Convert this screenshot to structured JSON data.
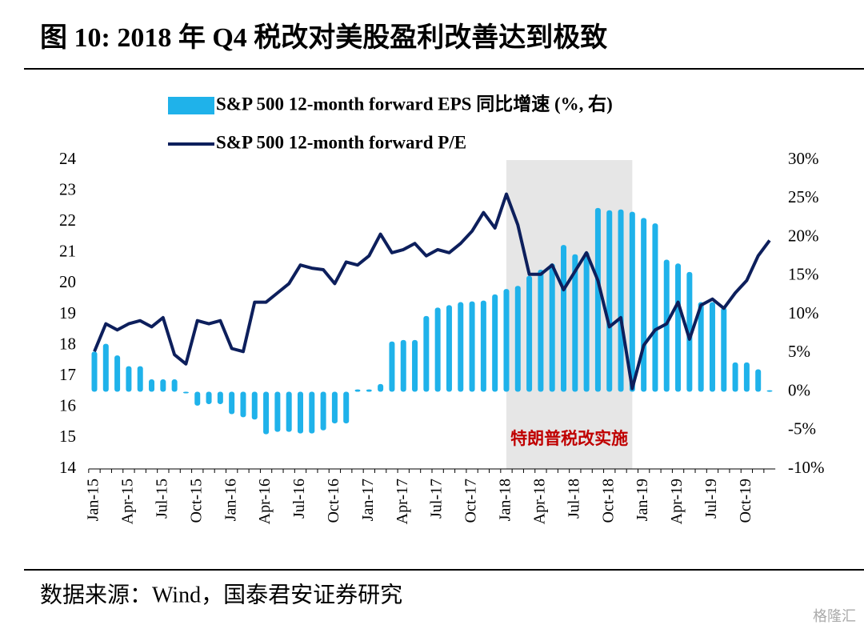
{
  "title": "图 10:  2018 年 Q4 税改对美股盈利改善达到极致",
  "source": "数据来源：Wind，国泰君安证券研究",
  "watermark": "格隆汇",
  "chart_data": {
    "type": "combo",
    "categories": [
      "Jan-15",
      null,
      null,
      "Apr-15",
      null,
      null,
      "Jul-15",
      null,
      null,
      "Oct-15",
      null,
      null,
      "Jan-16",
      null,
      null,
      "Apr-16",
      null,
      null,
      "Jul-16",
      null,
      null,
      "Oct-16",
      null,
      null,
      "Jan-17",
      null,
      null,
      "Apr-17",
      null,
      null,
      "Jul-17",
      null,
      null,
      "Oct-17",
      null,
      null,
      "Jan-18",
      null,
      null,
      "Apr-18",
      null,
      null,
      "Jul-18",
      null,
      null,
      "Oct-18",
      null,
      null,
      "Jan-19",
      null,
      null,
      "Apr-19",
      null,
      null,
      "Jul-19",
      null,
      null,
      "Oct-19",
      null,
      null
    ],
    "series": [
      {
        "name": "S&P 500 12-month forward EPS 同比增速 (%, 右)",
        "type": "bar",
        "axis": "y2",
        "color": "#1fb2ea",
        "values": [
          5.2,
          6.2,
          4.7,
          3.3,
          3.3,
          1.6,
          1.6,
          1.6,
          0,
          -1.8,
          -1.6,
          -1.6,
          -2.9,
          -3.3,
          -3.6,
          -5.5,
          -5.2,
          -5.2,
          -5.4,
          -5.4,
          -5.0,
          -4.1,
          -4.1,
          0.3,
          0.3,
          1.0,
          6.5,
          6.7,
          6.7,
          9.8,
          10.9,
          11.2,
          11.6,
          11.7,
          11.8,
          12.6,
          13.3,
          13.7,
          15.0,
          15.8,
          16.6,
          19.0,
          17.8,
          18.1,
          23.8,
          23.5,
          23.6,
          23.3,
          22.5,
          21.8,
          17.1,
          16.6,
          15.5,
          11.6,
          11.6,
          10.9,
          3.8,
          3.8,
          2.9,
          0.2
        ]
      },
      {
        "name": "S&P 500 12-month forward P/E",
        "type": "line",
        "color": "#0d1f5c",
        "values": [
          17.8,
          18.7,
          18.5,
          18.7,
          18.8,
          18.6,
          18.9,
          17.7,
          17.4,
          18.8,
          18.7,
          18.8,
          17.9,
          17.8,
          19.4,
          19.4,
          19.7,
          20.0,
          20.6,
          20.5,
          20.45,
          20.0,
          20.7,
          20.6,
          20.9,
          21.6,
          21.0,
          21.1,
          21.3,
          20.9,
          21.1,
          21.0,
          21.3,
          21.7,
          22.3,
          21.8,
          22.9,
          21.9,
          20.3,
          20.3,
          20.6,
          19.8,
          20.4,
          21.0,
          20.1,
          18.6,
          18.9,
          16.6,
          18.0,
          18.5,
          18.7,
          19.4,
          18.2,
          19.3,
          19.5,
          19.2,
          19.7,
          20.1,
          20.9,
          21.4
        ]
      }
    ],
    "ylim": [
      14,
      24
    ],
    "yticks": [
      14,
      15,
      16,
      17,
      18,
      19,
      20,
      21,
      22,
      23,
      24
    ],
    "y2lim": [
      -10,
      30
    ],
    "y2ticks": [
      {
        "value": -10,
        "label": "-10%"
      },
      {
        "value": -5,
        "label": "-5%"
      },
      {
        "value": 0,
        "label": "0%"
      },
      {
        "value": 5,
        "label": "5%"
      },
      {
        "value": 10,
        "label": "10%"
      },
      {
        "value": 15,
        "label": "15%"
      },
      {
        "value": 20,
        "label": "20%"
      },
      {
        "value": 25,
        "label": "25%"
      },
      {
        "value": 30,
        "label": "30%"
      }
    ],
    "grid": false,
    "highlight": {
      "start": 36,
      "end": 47,
      "color": "#e6e6e6",
      "label": "特朗普税改实施",
      "label_color": "#c00000"
    }
  }
}
